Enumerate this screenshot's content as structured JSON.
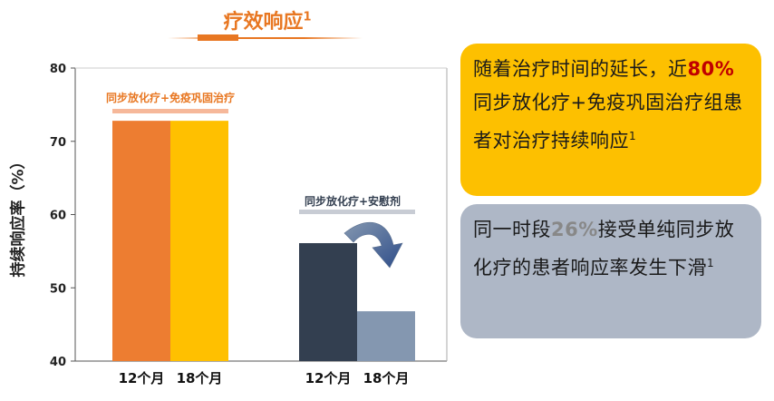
{
  "header": {
    "title": "疗效响应",
    "title_sup": "1"
  },
  "chart_data": {
    "type": "bar",
    "ylabel": "持续响应率（%）",
    "ylim": [
      40,
      80
    ],
    "yticks": [
      40,
      50,
      60,
      70,
      80
    ],
    "groups": [
      {
        "label": "同步放化疗+免疫巩固治疗",
        "label_color": "#e87722",
        "band_color": "#f6b89a",
        "bars": [
          {
            "category": "12个月",
            "value": 72.8,
            "color": "#ed7d31"
          },
          {
            "category": "18个月",
            "value": 72.8,
            "color": "#ffc000"
          }
        ]
      },
      {
        "label": "同步放化疗+安慰剂",
        "label_color": "#333f50",
        "band_color": "#c8ccd4",
        "bars": [
          {
            "category": "12个月",
            "value": 56.1,
            "color": "#333f50"
          },
          {
            "category": "18个月",
            "value": 46.8,
            "color": "#8497b0"
          }
        ]
      }
    ]
  },
  "callouts": {
    "box1": {
      "pre": "随着治疗时间的延长，近",
      "highlight": "80%",
      "post": "同步放化疗+免疫巩固治疗组患者对治疗持续响应",
      "sup": "1"
    },
    "box2": {
      "pre": "同一时段",
      "highlight": "26%",
      "post": "接受单纯同步放化疗的患者响应率发生下滑",
      "sup": "1"
    }
  }
}
